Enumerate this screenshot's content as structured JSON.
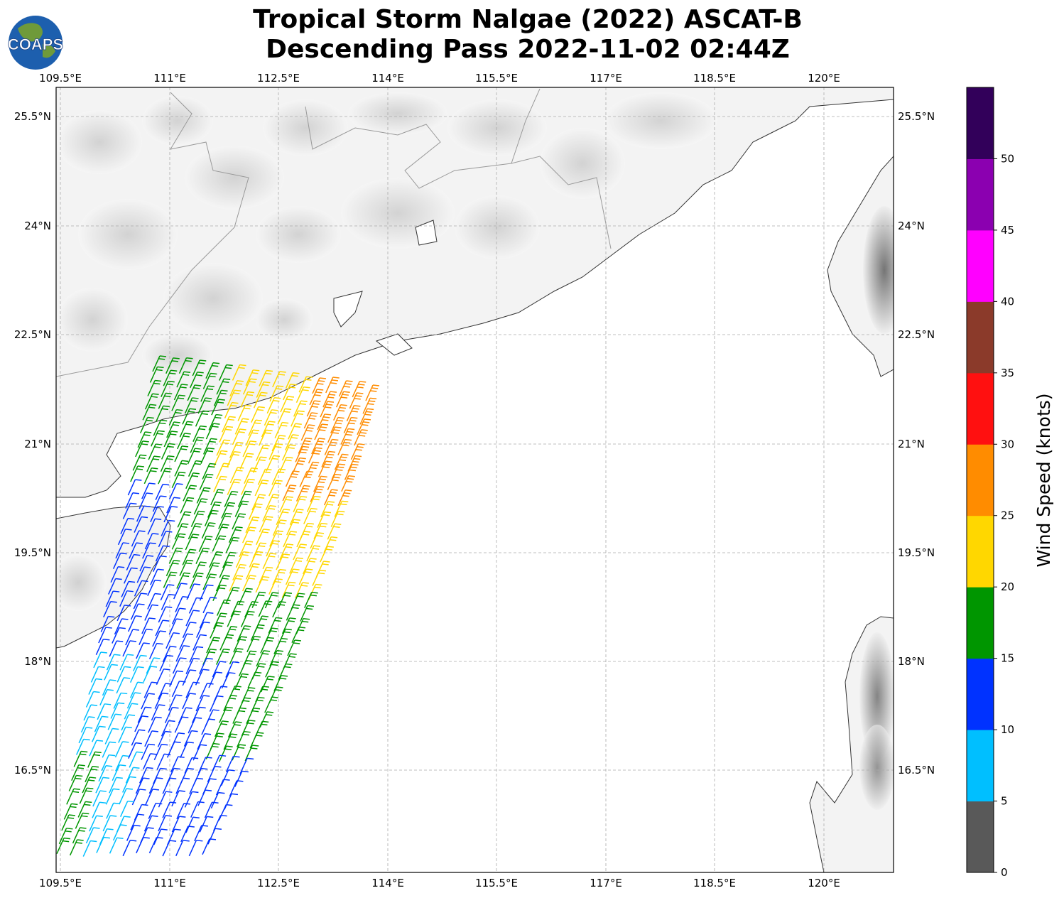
{
  "title": {
    "line1": "Tropical Storm Nalgae (2022) ASCAT-B",
    "line2": "Descending Pass 2022-11-02 02:44Z"
  },
  "logo": {
    "text": "COAPS",
    "icon": "globe-logo-icon"
  },
  "map": {
    "lon_ticks": [
      "109.5°E",
      "111°E",
      "112.5°E",
      "114°E",
      "115.5°E",
      "117°E",
      "118.5°E",
      "120°E"
    ],
    "lat_ticks": [
      "25.5°N",
      "24°N",
      "22.5°N",
      "21°N",
      "19.5°N",
      "18°N",
      "16.5°N"
    ],
    "lon_range": [
      109.5,
      121.0
    ],
    "lat_range": [
      15.3,
      26.1
    ],
    "grid": true
  },
  "colorbar": {
    "label": "Wind Speed (knots)",
    "ticks": [
      "0",
      "5",
      "10",
      "15",
      "20",
      "25",
      "30",
      "35",
      "40",
      "45",
      "50"
    ],
    "colors": [
      "#595959",
      "#00bfff",
      "#0032ff",
      "#009600",
      "#ffd700",
      "#ff8c00",
      "#ff1010",
      "#8b3a2a",
      "#ff00ff",
      "#8b00b0",
      "#32005a"
    ]
  },
  "wind_bins": [
    {
      "speed": "10-15",
      "color": "#0032ff"
    },
    {
      "speed": "5-10",
      "color": "#00bfff"
    },
    {
      "speed": "15-20",
      "color": "#009600"
    },
    {
      "speed": "20-25",
      "color": "#ffd700"
    },
    {
      "speed": "25-30",
      "color": "#ff8c00"
    }
  ]
}
